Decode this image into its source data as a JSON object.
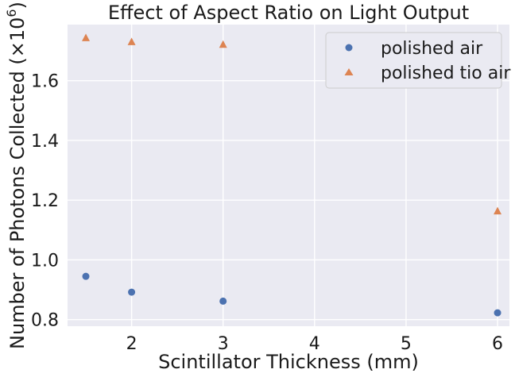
{
  "chart_data": {
    "type": "scatter",
    "title": "Effect of Aspect Ratio on Light Output",
    "xlabel": "Scintillator Thickness (mm)",
    "ylabel_main": "Number of Photons Collected (×10",
    "ylabel_exp": "6",
    "ylabel_close": ")",
    "xlim": [
      1.3,
      6.13
    ],
    "ylim": [
      0.778,
      1.788
    ],
    "xticks": [
      2,
      3,
      4,
      5,
      6
    ],
    "yticks": [
      0.8,
      1.0,
      1.2,
      1.4,
      1.6
    ],
    "grid": true,
    "legend_position": "top-right",
    "series": [
      {
        "name": "polished air",
        "marker": "circle",
        "color": "#4c72b0",
        "x": [
          1.5,
          2,
          3,
          6
        ],
        "y": [
          0.945,
          0.892,
          0.862,
          0.823
        ]
      },
      {
        "name": "polished tio air",
        "marker": "triangle",
        "color": "#dd8452",
        "x": [
          1.5,
          2,
          3,
          6
        ],
        "y": [
          1.743,
          1.73,
          1.721,
          1.163
        ]
      }
    ]
  }
}
